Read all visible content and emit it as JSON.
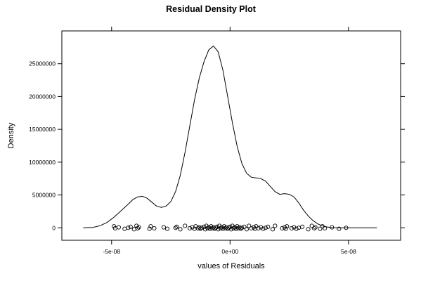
{
  "chart_data": {
    "type": "line",
    "title": "Residual Density Plot",
    "xlabel": "values of Residuals",
    "ylabel": "Density",
    "xlim": [
      -7.1e-08,
      7.2e-08
    ],
    "ylim": [
      -1900000,
      30000000
    ],
    "x_ticks": [
      {
        "value": -5e-08,
        "label": "-5e-08"
      },
      {
        "value": 0,
        "label": "0e+00"
      },
      {
        "value": 5e-08,
        "label": "5e-08"
      }
    ],
    "y_ticks": [
      {
        "value": 0,
        "label": "0"
      },
      {
        "value": 5000000,
        "label": "5000000"
      },
      {
        "value": 10000000,
        "label": "10000000"
      },
      {
        "value": 15000000,
        "label": "15000000"
      },
      {
        "value": 20000000,
        "label": "20000000"
      },
      {
        "value": 25000000,
        "label": "25000000"
      }
    ],
    "density": {
      "x": [
        -6.2e-08,
        -5.8e-08,
        -5.5e-08,
        -5.2e-08,
        -4.9e-08,
        -4.6e-08,
        -4.3e-08,
        -4.1e-08,
        -3.9e-08,
        -3.7e-08,
        -3.5e-08,
        -3.3e-08,
        -3.1e-08,
        -2.9e-08,
        -2.7e-08,
        -2.5e-08,
        -2.3e-08,
        -2.1e-08,
        -1.9e-08,
        -1.7e-08,
        -1.5e-08,
        -1.3e-08,
        -1.1e-08,
        -9e-09,
        -7e-09,
        -5e-09,
        -3e-09,
        -1e-09,
        1e-09,
        3e-09,
        5e-09,
        7e-09,
        9e-09,
        1.1e-08,
        1.3e-08,
        1.5e-08,
        1.7e-08,
        1.9e-08,
        2.1e-08,
        2.3e-08,
        2.5e-08,
        2.7e-08,
        2.9e-08,
        3.1e-08,
        3.3e-08,
        3.5e-08,
        3.7e-08,
        3.9e-08,
        4.1e-08,
        4.3e-08,
        4.5e-08,
        4.7e-08,
        4.9e-08,
        5.2e-08,
        5.5e-08,
        5.8e-08,
        6.2e-08
      ],
      "y": [
        0,
        50000,
        300000,
        800000,
        1600000,
        2600000,
        3600000,
        4300000,
        4700000,
        4800000,
        4500000,
        3900000,
        3300000,
        3100000,
        3300000,
        4000000,
        5500000,
        8000000,
        11500000,
        15500000,
        19500000,
        22800000,
        25300000,
        27100000,
        27700000,
        26800000,
        24000000,
        20000000,
        16000000,
        12400000,
        9800000,
        8300000,
        7700000,
        7600000,
        7500000,
        7100000,
        6300000,
        5500000,
        5100000,
        5200000,
        5100000,
        4700000,
        3800000,
        2700000,
        1800000,
        1100000,
        600000,
        300000,
        120000,
        30000,
        5000,
        1000,
        0,
        0,
        0,
        0,
        0
      ]
    },
    "rug_points": [
      -4.9e-08,
      -4.85e-08,
      -4.7e-08,
      -4.45e-08,
      -4.3e-08,
      -4.2e-08,
      -4.05e-08,
      -3.95e-08,
      -3.9e-08,
      -3.85e-08,
      -3.4e-08,
      -3.35e-08,
      -3.2e-08,
      -2.8e-08,
      -2.65e-08,
      -2.3e-08,
      -2.25e-08,
      -2.1e-08,
      -1.9e-08,
      -1.7e-08,
      -1.6e-08,
      -1.5e-08,
      -1.45e-08,
      -1.35e-08,
      -1.3e-08,
      -1.25e-08,
      -1.2e-08,
      -1.1e-08,
      -1.05e-08,
      -1e-08,
      -9.5e-09,
      -9e-09,
      -8.5e-09,
      -8e-09,
      -7.5e-09,
      -7e-09,
      -6.5e-09,
      -6e-09,
      -5.5e-09,
      -5e-09,
      -4.5e-09,
      -4e-09,
      -3.5e-09,
      -3e-09,
      -2.5e-09,
      -2e-09,
      -1.5e-09,
      -1e-09,
      -5e-10,
      0,
      5e-10,
      1e-09,
      1.5e-09,
      2e-09,
      2.5e-09,
      3e-09,
      3.5e-09,
      4e-09,
      4.5e-09,
      5e-09,
      6e-09,
      7e-09,
      8e-09,
      9e-09,
      1e-08,
      1.05e-08,
      1.1e-08,
      1.2e-08,
      1.3e-08,
      1.4e-08,
      1.5e-08,
      1.6e-08,
      1.8e-08,
      1.9e-08,
      2.2e-08,
      2.3e-08,
      2.35e-08,
      2.4e-08,
      2.6e-08,
      2.7e-08,
      2.8e-08,
      2.9e-08,
      3.05e-08,
      3.3e-08,
      3.45e-08,
      3.55e-08,
      3.6e-08,
      3.8e-08,
      3.9e-08,
      4e-08,
      4.3e-08,
      4.6e-08,
      4.9e-08
    ],
    "grid": false,
    "legend": "none"
  }
}
